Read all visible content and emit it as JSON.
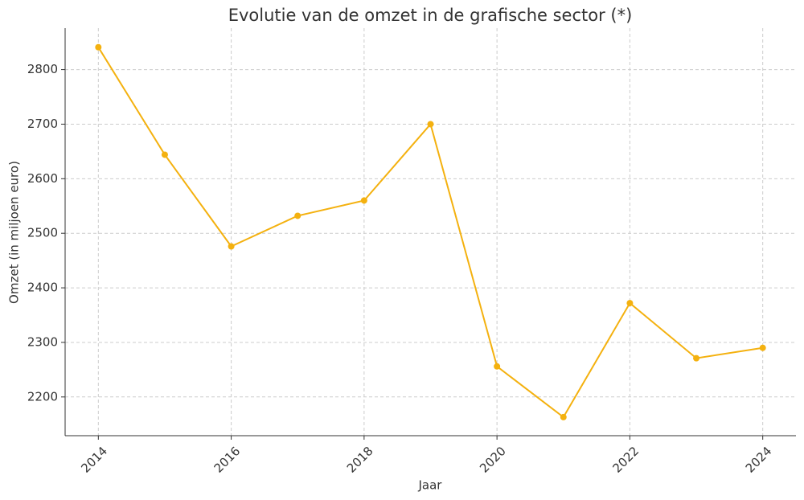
{
  "chart_data": {
    "type": "line",
    "title": "Evolutie van de omzet in de grafische sector (*)",
    "x_label": "Jaar",
    "y_label": "Omzet (in miljoen euro)",
    "x": [
      2014,
      2015,
      2016,
      2017,
      2018,
      2019,
      2020,
      2021,
      2022,
      2023,
      2024
    ],
    "series": [
      {
        "color": "#f4b10f",
        "values": [
          2841,
          2644,
          2476,
          2532,
          2560,
          2700,
          2256,
          2163,
          2372,
          2271,
          2290
        ]
      }
    ],
    "xlim": [
      2013.5,
      2024.5
    ],
    "xticks": [
      2014,
      2016,
      2018,
      2020,
      2022,
      2024
    ],
    "ylim": [
      2129,
      2876
    ],
    "yticks": [
      2200,
      2300,
      2400,
      2500,
      2600,
      2700,
      2800
    ],
    "grid": true
  }
}
